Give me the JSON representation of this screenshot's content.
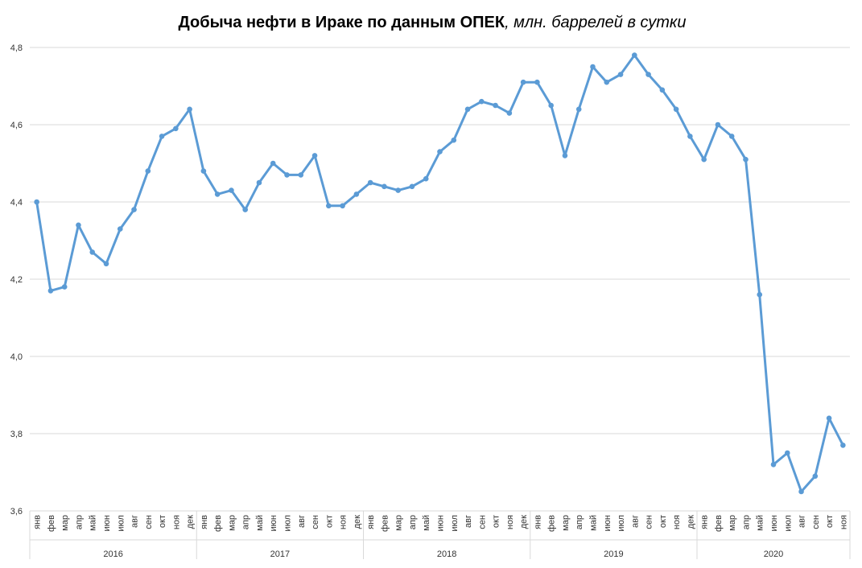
{
  "chart_data": {
    "type": "line",
    "title": "Добыча нефти в Ираке по данным ОПЕК",
    "subtitle": ", млн. баррелей в сутки",
    "ylim": [
      3.6,
      4.8
    ],
    "yticks": [
      "3,6",
      "3,8",
      "4,0",
      "4,2",
      "4,4",
      "4,6",
      "4,8"
    ],
    "grid": true,
    "color": "#5b9bd5",
    "years": [
      {
        "label": "2016",
        "months": 12
      },
      {
        "label": "2017",
        "months": 12
      },
      {
        "label": "2018",
        "months": 12
      },
      {
        "label": "2019",
        "months": 12
      },
      {
        "label": "2020",
        "months": 11
      }
    ],
    "x": [
      "янв",
      "фев",
      "мар",
      "апр",
      "май",
      "июн",
      "июл",
      "авг",
      "сен",
      "окт",
      "ноя",
      "дек",
      "янв",
      "фев",
      "мар",
      "апр",
      "май",
      "июн",
      "июл",
      "авг",
      "сен",
      "окт",
      "ноя",
      "дек",
      "янв",
      "фев",
      "мар",
      "апр",
      "май",
      "июн",
      "июл",
      "авг",
      "сен",
      "окт",
      "ноя",
      "дек",
      "янв",
      "фев",
      "мар",
      "апр",
      "май",
      "июн",
      "июл",
      "авг",
      "сен",
      "окт",
      "ноя",
      "дек",
      "янв",
      "фев",
      "мар",
      "апр",
      "май",
      "июн",
      "июл",
      "авг",
      "сен",
      "окт",
      "ноя"
    ],
    "series": [
      {
        "values": [
          4.4,
          4.17,
          4.18,
          4.34,
          4.27,
          4.24,
          4.33,
          4.38,
          4.48,
          4.57,
          4.59,
          4.64,
          4.48,
          4.42,
          4.43,
          4.38,
          4.45,
          4.5,
          4.47,
          4.47,
          4.52,
          4.39,
          4.39,
          4.42,
          4.45,
          4.44,
          4.43,
          4.44,
          4.46,
          4.53,
          4.56,
          4.64,
          4.66,
          4.65,
          4.63,
          4.71,
          4.71,
          4.65,
          4.52,
          4.64,
          4.75,
          4.71,
          4.73,
          4.78,
          4.73,
          4.69,
          4.64,
          4.57,
          4.51,
          4.6,
          4.57,
          4.51,
          4.16,
          3.72,
          3.75,
          3.65,
          3.69,
          3.84,
          3.77
        ]
      }
    ]
  }
}
